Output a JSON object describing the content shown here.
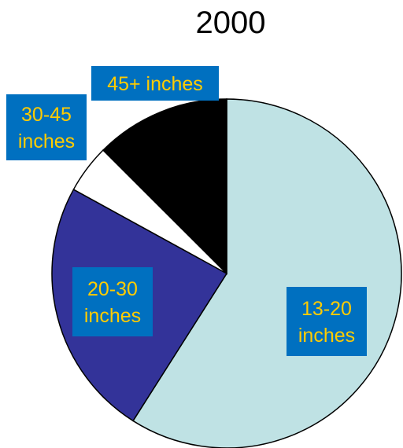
{
  "chart_data": {
    "type": "pie",
    "title": "2000",
    "slices": [
      {
        "label": "13-20 inches",
        "lines": [
          "13-20",
          "inches"
        ],
        "value": 59,
        "color": "#bfe2e4"
      },
      {
        "label": "20-30 inches",
        "lines": [
          "20-30",
          "inches"
        ],
        "value": 24,
        "color": "#333399"
      },
      {
        "label": "30-45 inches",
        "lines": [
          "30-45",
          "inches"
        ],
        "value": 4.5,
        "color": "#ffffff"
      },
      {
        "label": "45+ inches",
        "lines": [
          "45+ inches"
        ],
        "value": 12.5,
        "color": "#000000"
      }
    ],
    "label_box_color": "#0070c0",
    "label_text_color": "#ffcc00",
    "start": "top",
    "direction": "clockwise"
  }
}
